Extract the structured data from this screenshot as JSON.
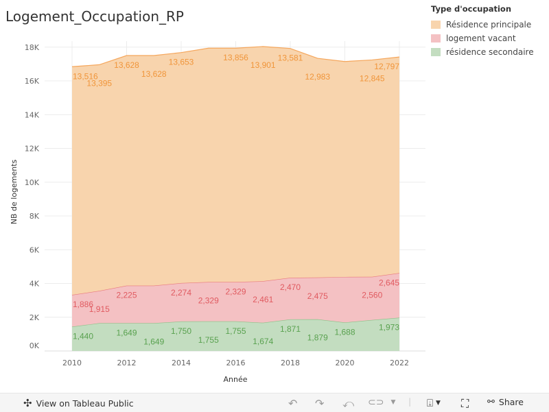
{
  "title": "Logement_Occupation_RP",
  "legend": {
    "title": "Type d'occupation",
    "items": [
      {
        "label": "Résidence principale",
        "color": "#f8d4ad"
      },
      {
        "label": "logement vacant",
        "color": "#f4c1c3"
      },
      {
        "label": "résidence secondaire",
        "color": "#c3ddc0"
      }
    ]
  },
  "toolbar": {
    "view_label": "View on Tableau Public",
    "share_label": "Share"
  },
  "chart_data": {
    "type": "area",
    "stacked": true,
    "xlabel": "Année",
    "ylabel": "NB de logements",
    "ylim": [
      0,
      18500
    ],
    "yticks": [
      {
        "v": 0,
        "label": "0K"
      },
      {
        "v": 2000,
        "label": "2K"
      },
      {
        "v": 4000,
        "label": "4K"
      },
      {
        "v": 6000,
        "label": "6K"
      },
      {
        "v": 8000,
        "label": "8K"
      },
      {
        "v": 10000,
        "label": "10K"
      },
      {
        "v": 12000,
        "label": "12K"
      },
      {
        "v": 14000,
        "label": "14K"
      },
      {
        "v": 16000,
        "label": "16K"
      },
      {
        "v": 18000,
        "label": "18K"
      }
    ],
    "xticks": [
      "2010",
      "2012",
      "2014",
      "2016",
      "2018",
      "2020",
      "2022"
    ],
    "x": [
      2010,
      2011,
      2012,
      2013,
      2014,
      2015,
      2016,
      2017,
      2018,
      2019,
      2020,
      2021,
      2022
    ],
    "series": [
      {
        "name": "résidence secondaire",
        "fill": "#c3ddc0",
        "stroke": "#8bc187",
        "text": "#59a14f",
        "values": [
          1440,
          1649,
          1649,
          1649,
          1750,
          1755,
          1755,
          1674,
          1871,
          1879,
          1688,
          1837,
          1973
        ],
        "labels": [
          "1,440",
          null,
          "1,649",
          "1,649",
          "1,750",
          "1,755",
          "1,755",
          "1,674",
          "1,871",
          "1,879",
          "1,688",
          null,
          "1,973"
        ]
      },
      {
        "name": "logement vacant",
        "fill": "#f4c1c3",
        "stroke": "#e8787c",
        "text": "#e05a60",
        "values": [
          1886,
          1915,
          2225,
          2225,
          2274,
          2329,
          2329,
          2461,
          2470,
          2475,
          2700,
          2560,
          2645
        ],
        "labels": [
          "1,886",
          "1,915",
          "2,225",
          null,
          "2,274",
          "2,329",
          "2,329",
          "2,461",
          "2,470",
          "2,475",
          null,
          "2,560",
          "2,645"
        ]
      },
      {
        "name": "Résidence principale",
        "fill": "#f8d4ad",
        "stroke": "#f5a65b",
        "text": "#f0953a",
        "values": [
          13516,
          13395,
          13628,
          13628,
          13653,
          13856,
          13856,
          13901,
          13581,
          12983,
          12760,
          12845,
          12797
        ],
        "labels": [
          "13,516",
          "13,395",
          "13,628",
          "13,628",
          "13,653",
          null,
          "13,856",
          "13,901",
          "13,581",
          "12,983",
          null,
          "12,845",
          "12,797"
        ]
      }
    ]
  }
}
